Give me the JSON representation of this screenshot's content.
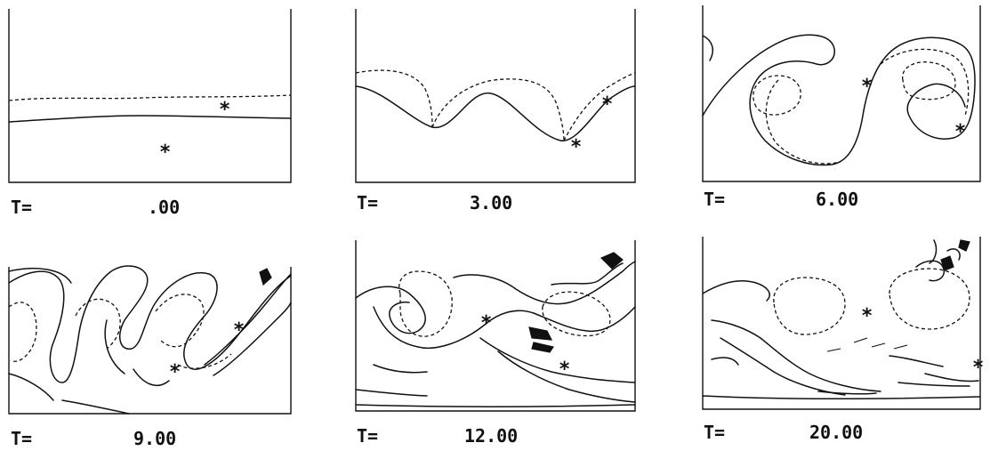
{
  "figure": {
    "panels": [
      {
        "id": "p1",
        "prefix": "T=",
        "time": ".00"
      },
      {
        "id": "p2",
        "prefix": "T=",
        "time": "3.00"
      },
      {
        "id": "p3",
        "prefix": "T=",
        "time": "6.00"
      },
      {
        "id": "p4",
        "prefix": "T=",
        "time": "9.00"
      },
      {
        "id": "p5",
        "prefix": "T=",
        "time": "12.00"
      },
      {
        "id": "p6",
        "prefix": "T=",
        "time": "20.00"
      }
    ],
    "marker_glyph": "*"
  }
}
